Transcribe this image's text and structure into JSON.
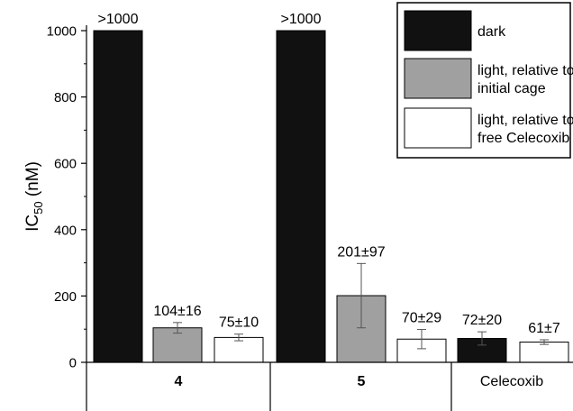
{
  "chart_data": {
    "type": "bar",
    "ylabel": "IC",
    "ylabel_sub": "50",
    "ylabel_suffix": " (nM)",
    "ylim": [
      0,
      1000
    ],
    "yticks": [
      0,
      200,
      400,
      600,
      800,
      1000
    ],
    "groups": [
      "4",
      "5",
      "Celecoxib"
    ],
    "legend": {
      "placement": "top-right",
      "entries": [
        {
          "lines": [
            "dark"
          ],
          "fill": "#111111"
        },
        {
          "lines": [
            "light, relative to",
            "initial cage"
          ],
          "fill": "#a0a0a0"
        },
        {
          "lines": [
            "light, relative to",
            "free Celecoxib"
          ],
          "fill": "#ffffff"
        }
      ]
    },
    "bars": [
      {
        "group": "4",
        "series": "dark",
        "value": 1000,
        "label": ">1000",
        "err": null,
        "fill": "#111111"
      },
      {
        "group": "4",
        "series": "light, relative to initial cage",
        "value": 104,
        "label": "104±16",
        "err": 16,
        "fill": "#a0a0a0"
      },
      {
        "group": "4",
        "series": "light, relative to free Celecoxib",
        "value": 75,
        "label": "75±10",
        "err": 10,
        "fill": "#ffffff"
      },
      {
        "group": "5",
        "series": "dark",
        "value": 1000,
        "label": ">1000",
        "err": null,
        "fill": "#111111"
      },
      {
        "group": "5",
        "series": "light, relative to initial cage",
        "value": 201,
        "label": "201±97",
        "err": 97,
        "fill": "#a0a0a0"
      },
      {
        "group": "5",
        "series": "light, relative to free Celecoxib",
        "value": 70,
        "label": "70±29",
        "err": 29,
        "fill": "#ffffff"
      },
      {
        "group": "Celecoxib",
        "series": "dark",
        "value": 72,
        "label": "72±20",
        "err": 20,
        "fill": "#111111"
      },
      {
        "group": "Celecoxib",
        "series": "light, relative to free Celecoxib",
        "value": 61,
        "label": "61±7",
        "err": 7,
        "fill": "#ffffff"
      }
    ]
  }
}
